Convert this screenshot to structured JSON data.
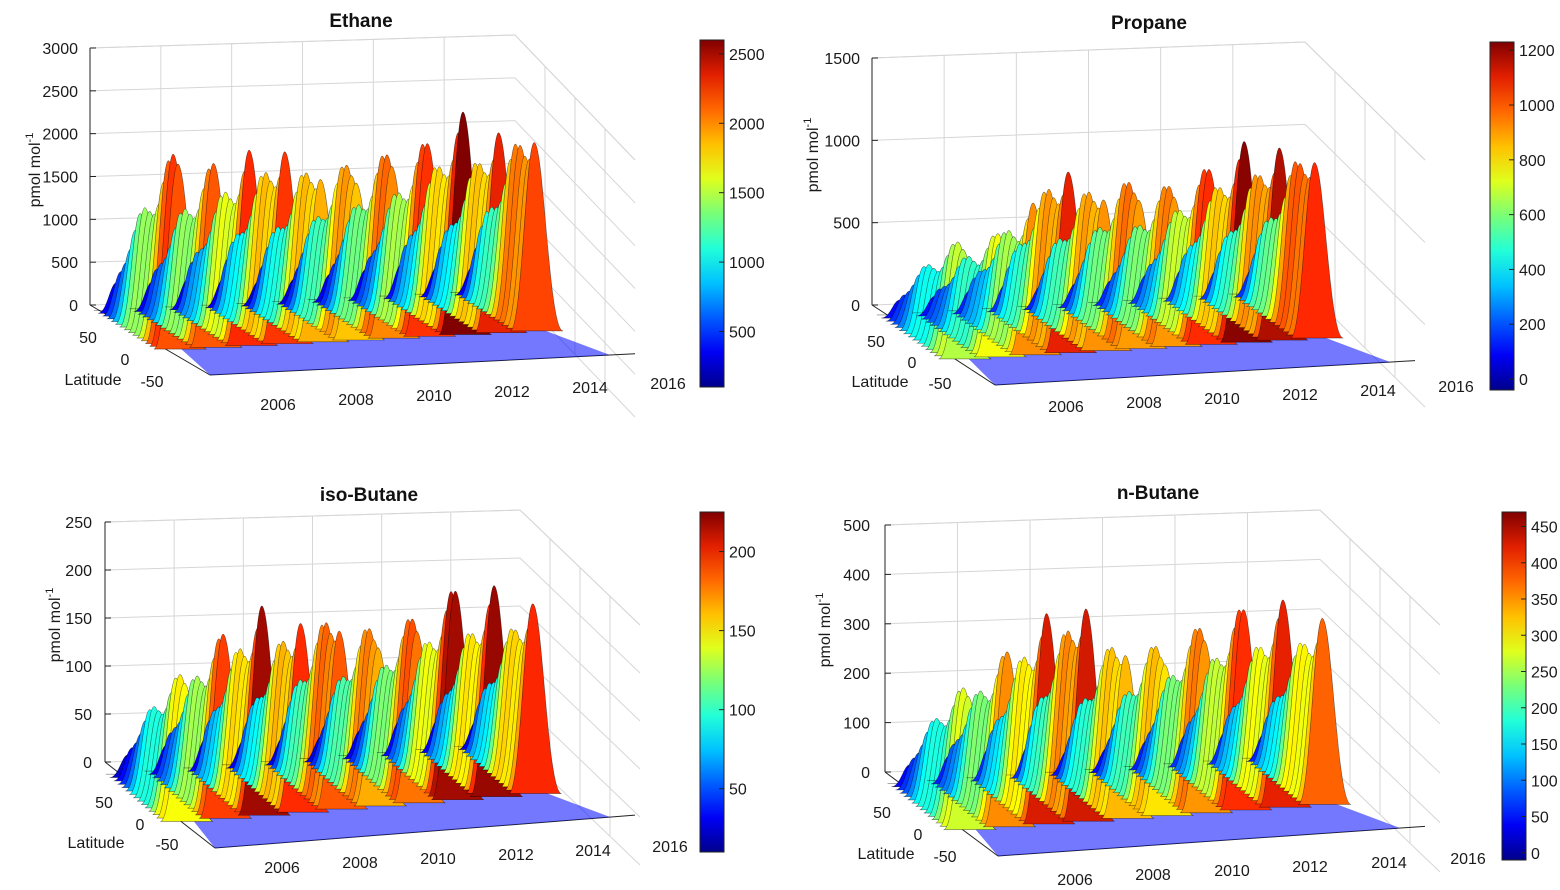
{
  "chart_data": [
    {
      "type": "surface",
      "title": "Ethane",
      "zlabel": "pmol mol",
      "zlabel_superscript": "-1",
      "ylabel": "Latitude",
      "zlim": [
        0,
        3000
      ],
      "z_ticks": [
        0,
        500,
        1000,
        1500,
        2000,
        2500,
        3000
      ],
      "year_ticks": [
        "2006",
        "2008",
        "2010",
        "2012",
        "2014",
        "2016"
      ],
      "lat_ticks": [
        "50",
        "0",
        "-50"
      ],
      "colorbar_ticks": [
        500,
        1000,
        1500,
        2000,
        2500
      ],
      "colorbar_range": [
        100,
        2600
      ],
      "seasonal_peaks": [
        2400,
        2180,
        2300,
        2450,
        2300,
        2280,
        2300,
        2330,
        2600,
        2480,
        2600
      ],
      "baseline": 700
    },
    {
      "type": "surface",
      "title": "Propane",
      "zlabel": "pmol mol",
      "zlabel_superscript": "-1",
      "ylabel": "Latitude",
      "zlim": [
        0,
        1500
      ],
      "z_ticks": [
        0,
        500,
        1000,
        1500
      ],
      "year_ticks": [
        "2006",
        "2008",
        "2010",
        "2012",
        "2014",
        "2016"
      ],
      "lat_ticks": [
        "50",
        "0",
        "-50"
      ],
      "colorbar_ticks": [
        0,
        200,
        400,
        600,
        800,
        1000,
        1200
      ],
      "colorbar_range": [
        -40,
        1230
      ],
      "seasonal_peaks": [
        740,
        760,
        930,
        1200,
        1110,
        1120,
        1040,
        1100,
        1220,
        1240,
        1260
      ],
      "baseline": 160
    },
    {
      "type": "surface",
      "title": "iso-Butane",
      "zlabel": "pmol mol",
      "zlabel_superscript": "-1",
      "ylabel": "Latitude",
      "zlim": [
        0,
        250
      ],
      "z_ticks": [
        0,
        50,
        100,
        150,
        200,
        250
      ],
      "year_ticks": [
        "2006",
        "2008",
        "2010",
        "2012",
        "2014",
        "2016"
      ],
      "lat_ticks": [
        "50",
        "0",
        "-50"
      ],
      "colorbar_ticks": [
        50,
        100,
        150,
        200
      ],
      "colorbar_range": [
        10,
        225
      ],
      "seasonal_peaks": [
        160,
        195,
        220,
        215,
        225,
        205,
        205,
        225,
        220,
        210
      ],
      "baseline": 30
    },
    {
      "type": "surface",
      "title": "n-Butane",
      "zlabel": "pmol mol",
      "zlabel_superscript": "-1",
      "ylabel": "Latitude",
      "zlim": [
        0,
        500
      ],
      "z_ticks": [
        0,
        100,
        200,
        300,
        400,
        500
      ],
      "year_ticks": [
        "2006",
        "2008",
        "2010",
        "2012",
        "2014",
        "2016"
      ],
      "lat_ticks": [
        "50",
        "0",
        "-50"
      ],
      "colorbar_ticks": [
        0,
        50,
        100,
        150,
        200,
        250,
        300,
        350,
        400,
        450
      ],
      "colorbar_range": [
        -10,
        470
      ],
      "seasonal_peaks": [
        300,
        360,
        430,
        470,
        400,
        380,
        400,
        420,
        420,
        400
      ],
      "baseline": 60
    }
  ]
}
